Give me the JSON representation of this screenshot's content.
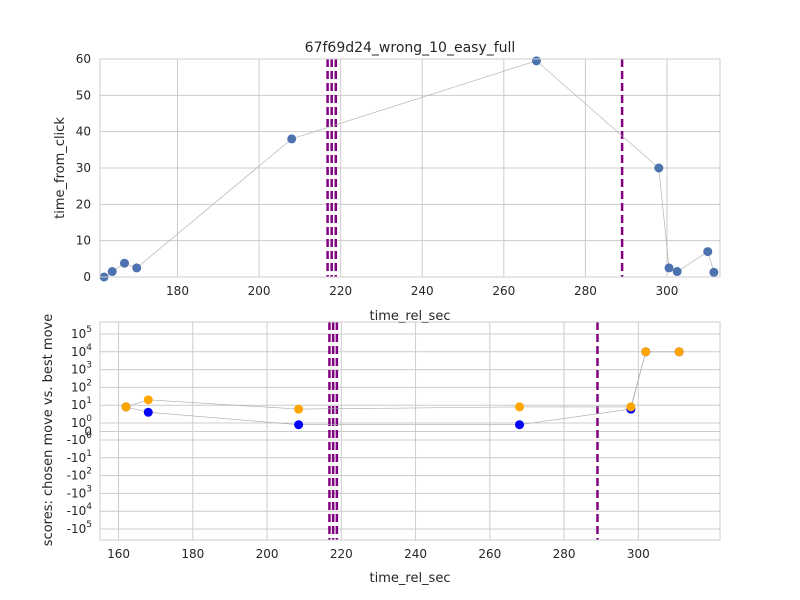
{
  "chart_data": [
    {
      "type": "scatter",
      "title": "67f69d24_wrong_10_easy_full",
      "xlabel": "time_rel_sec",
      "ylabel": "time_from_click",
      "xlim": [
        161,
        313
      ],
      "ylim": [
        0,
        60
      ],
      "xticks": [
        180,
        200,
        220,
        240,
        260,
        280,
        300
      ],
      "yticks": [
        0,
        10,
        20,
        30,
        40,
        50,
        60
      ],
      "grid": true,
      "series": [
        {
          "color": "#4c72b0",
          "connected": true,
          "points": [
            {
              "x": 162,
              "y": 0
            },
            {
              "x": 164,
              "y": 1.5
            },
            {
              "x": 167,
              "y": 3.8
            },
            {
              "x": 170,
              "y": 2.5
            },
            {
              "x": 208,
              "y": 38
            },
            {
              "x": 268,
              "y": 59.5
            },
            {
              "x": 298,
              "y": 30
            },
            {
              "x": 300.5,
              "y": 2.5
            },
            {
              "x": 302.5,
              "y": 1.5
            },
            {
              "x": 310,
              "y": 7
            },
            {
              "x": 311.5,
              "y": 1.3
            }
          ]
        }
      ],
      "vlines": [
        {
          "x": 216.8,
          "color": "#800080",
          "style": "dashed"
        },
        {
          "x": 217.8,
          "color": "#800080",
          "style": "dashed"
        },
        {
          "x": 218.8,
          "color": "#800080",
          "style": "dashed"
        },
        {
          "x": 289,
          "color": "#800080",
          "style": "dashed"
        }
      ]
    },
    {
      "type": "scatter",
      "xlabel": "time_rel_sec",
      "ylabel": "scores: chosen move vs. best move",
      "yscale": "symlog",
      "xlim": [
        155,
        322
      ],
      "ylim": [
        -100000,
        100000
      ],
      "xticks": [
        160,
        180,
        200,
        220,
        240,
        260,
        280,
        300
      ],
      "ytick_labels": [
        "10^5",
        "10^4",
        "10^3",
        "10^2",
        "10^1",
        "10^0",
        "0",
        "-10^0",
        "-10^1",
        "-10^2",
        "-10^3",
        "-10^4",
        "-10^5"
      ],
      "grid": true,
      "series": [
        {
          "color": "#0000ff",
          "connected": true,
          "points": [
            {
              "x": 162,
              "y": 8
            },
            {
              "x": 168,
              "y": 4
            },
            {
              "x": 208.5,
              "y": 0.8
            },
            {
              "x": 268,
              "y": 0.8
            },
            {
              "x": 298,
              "y": 6
            },
            {
              "x": 302,
              "y": 10000
            },
            {
              "x": 311,
              "y": 10000
            }
          ]
        },
        {
          "color": "#ffa500",
          "connected": true,
          "points": [
            {
              "x": 162,
              "y": 8
            },
            {
              "x": 168,
              "y": 20
            },
            {
              "x": 208.5,
              "y": 6
            },
            {
              "x": 268,
              "y": 8
            },
            {
              "x": 298,
              "y": 8
            },
            {
              "x": 302,
              "y": 10000
            },
            {
              "x": 311,
              "y": 10000
            }
          ]
        }
      ],
      "vlines": [
        {
          "x": 216.8,
          "color": "#800080",
          "style": "dashed"
        },
        {
          "x": 217.8,
          "color": "#800080",
          "style": "dashed"
        },
        {
          "x": 218.8,
          "color": "#800080",
          "style": "dashed"
        },
        {
          "x": 289,
          "color": "#800080",
          "style": "dashed"
        }
      ]
    }
  ]
}
